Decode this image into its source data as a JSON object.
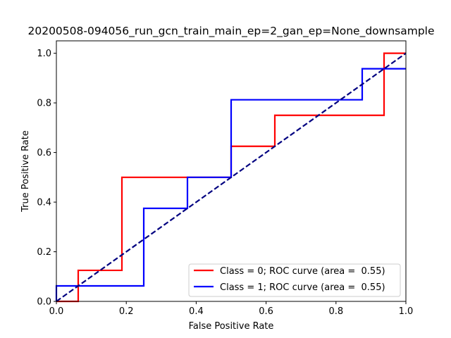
{
  "chart_data": {
    "type": "line",
    "title": "20200508-094056_run_gcn_train_main_ep=2_gan_ep=None_downsample",
    "xlabel": "False Positive Rate",
    "ylabel": "True Positive Rate",
    "xlim": [
      0.0,
      1.0
    ],
    "ylim": [
      0.0,
      1.05
    ],
    "xticks": [
      0.0,
      0.2,
      0.4,
      0.6,
      0.8,
      1.0
    ],
    "xtick_labels": [
      "0.0",
      "0.2",
      "0.4",
      "0.6",
      "0.8",
      "1.0"
    ],
    "yticks": [
      0.0,
      0.2,
      0.4,
      0.6,
      0.8,
      1.0
    ],
    "ytick_labels": [
      "0.0",
      "0.2",
      "0.4",
      "0.6",
      "0.8",
      "1.0"
    ],
    "grid": false,
    "legend_position": "lower-right",
    "series": [
      {
        "name": "Class = 0; ROC curve (area =  0.55)",
        "color": "#ff0000",
        "style": "solid",
        "x": [
          0.0,
          0.0625,
          0.0625,
          0.1875,
          0.1875,
          0.5,
          0.5,
          0.625,
          0.625,
          0.9375,
          0.9375,
          1.0
        ],
        "y": [
          0.0,
          0.0,
          0.125,
          0.125,
          0.5,
          0.5,
          0.625,
          0.625,
          0.75,
          0.75,
          1.0,
          1.0
        ]
      },
      {
        "name": "Class = 1; ROC curve (area =  0.55)",
        "color": "#0000ff",
        "style": "solid",
        "x": [
          0.0,
          0.0,
          0.25,
          0.25,
          0.375,
          0.375,
          0.5,
          0.5,
          0.875,
          0.875,
          1.0
        ],
        "y": [
          0.0,
          0.0625,
          0.0625,
          0.375,
          0.375,
          0.5,
          0.5,
          0.8125,
          0.8125,
          0.9375,
          0.9375
        ]
      },
      {
        "color": "#000080",
        "style": "dashed",
        "x": [
          0.0,
          1.0
        ],
        "y": [
          0.0,
          1.0
        ]
      }
    ]
  }
}
